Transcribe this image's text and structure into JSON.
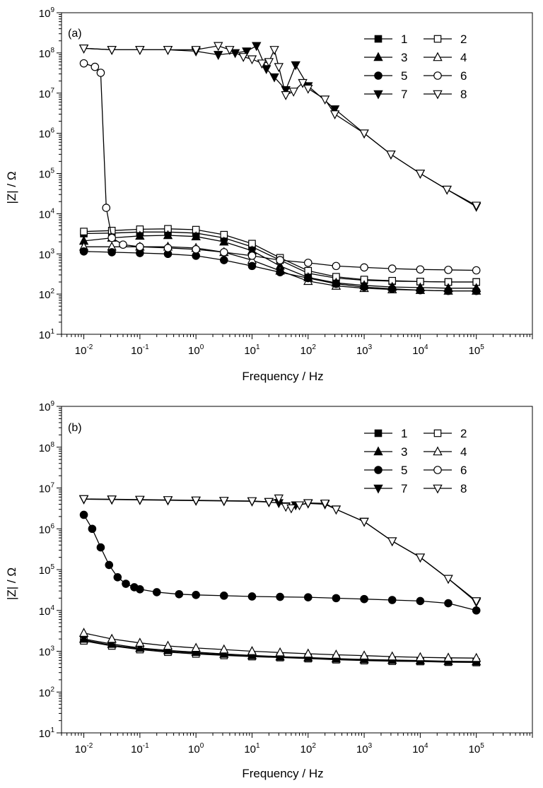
{
  "chart_data": [
    {
      "type": "scatter",
      "panel_label": "(a)",
      "xlabel": "Frequency / Hz",
      "ylabel": "|Z| / Ω",
      "xscale": "log",
      "yscale": "log",
      "xlim": [
        0.004,
        1000000
      ],
      "ylim": [
        10,
        1000000000
      ],
      "x_ticks": [
        {
          "base": "10",
          "exp": "-2",
          "v": 0.01
        },
        {
          "base": "10",
          "exp": "-1",
          "v": 0.1
        },
        {
          "base": "10",
          "exp": "0",
          "v": 1
        },
        {
          "base": "10",
          "exp": "1",
          "v": 10
        },
        {
          "base": "10",
          "exp": "2",
          "v": 100
        },
        {
          "base": "10",
          "exp": "3",
          "v": 1000
        },
        {
          "base": "10",
          "exp": "4",
          "v": 10000
        },
        {
          "base": "10",
          "exp": "5",
          "v": 100000
        }
      ],
      "y_ticks": [
        {
          "base": "10",
          "exp": "1",
          "v": 10
        },
        {
          "base": "10",
          "exp": "2",
          "v": 100
        },
        {
          "base": "10",
          "exp": "3",
          "v": 1000
        },
        {
          "base": "10",
          "exp": "4",
          "v": 10000
        },
        {
          "base": "10",
          "exp": "5",
          "v": 100000
        },
        {
          "base": "10",
          "exp": "6",
          "v": 1000000
        },
        {
          "base": "10",
          "exp": "7",
          "v": 10000000
        },
        {
          "base": "10",
          "exp": "8",
          "v": 100000000
        },
        {
          "base": "10",
          "exp": "9",
          "v": 1000000000
        }
      ],
      "legend_position": "top-right",
      "series": [
        {
          "name": "1",
          "marker": "square",
          "filled": true,
          "x": [
            0.01,
            0.0316,
            0.1,
            0.316,
            1,
            3.16,
            10,
            31.6,
            100,
            316,
            1000,
            3160,
            10000,
            31600,
            100000
          ],
          "y": [
            3200,
            3300,
            3500,
            3500,
            3300,
            2500,
            1500,
            700,
            330,
            250,
            220,
            210,
            205,
            200,
            200
          ]
        },
        {
          "name": "2",
          "marker": "square",
          "filled": false,
          "x": [
            0.01,
            0.0316,
            0.1,
            0.316,
            1,
            3.16,
            10,
            31.6,
            100,
            316,
            1000,
            3160,
            10000,
            31600,
            100000
          ],
          "y": [
            3600,
            3800,
            4100,
            4200,
            4000,
            3000,
            1800,
            800,
            380,
            270,
            230,
            215,
            205,
            200,
            200
          ]
        },
        {
          "name": "3",
          "marker": "triangle-up",
          "filled": true,
          "x": [
            0.01,
            0.0316,
            0.1,
            0.316,
            1,
            3.16,
            10,
            31.6,
            100,
            316,
            1000,
            3160,
            10000,
            31600,
            100000
          ],
          "y": [
            2100,
            2500,
            2800,
            2900,
            2700,
            2000,
            1200,
            500,
            260,
            190,
            165,
            150,
            145,
            140,
            140
          ]
        },
        {
          "name": "4",
          "marker": "triangle-up",
          "filled": false,
          "x": [
            0.01,
            0.0316,
            0.1,
            0.316,
            1,
            3.16,
            10,
            31.6,
            100,
            316,
            1000,
            3160,
            10000,
            31600,
            100000
          ],
          "y": [
            1500,
            1500,
            1500,
            1500,
            1400,
            1100,
            700,
            380,
            210,
            160,
            140,
            130,
            125,
            120,
            120
          ]
        },
        {
          "name": "5",
          "marker": "circle",
          "filled": true,
          "x": [
            0.01,
            0.0316,
            0.1,
            0.316,
            1,
            3.16,
            10,
            31.6,
            100,
            316,
            1000,
            3160,
            10000,
            31600,
            100000
          ],
          "y": [
            1150,
            1100,
            1050,
            1000,
            900,
            700,
            500,
            350,
            250,
            180,
            150,
            135,
            125,
            120,
            120
          ]
        },
        {
          "name": "6",
          "marker": "circle",
          "filled": false,
          "x": [
            0.01,
            0.0158,
            0.02,
            0.0251,
            0.0316,
            0.05,
            0.1,
            0.316,
            1,
            3.16,
            10,
            31.6,
            100,
            316,
            1000,
            3160,
            10000,
            31600,
            100000
          ],
          "y": [
            55000000,
            45000000,
            32000000,
            14000,
            2500,
            1700,
            1500,
            1400,
            1300,
            1100,
            900,
            700,
            600,
            500,
            460,
            430,
            410,
            400,
            390
          ]
        },
        {
          "name": "7",
          "marker": "triangle-down",
          "filled": true,
          "x": [
            0.01,
            0.0316,
            0.1,
            0.316,
            1,
            2.5,
            5,
            8,
            12,
            18,
            25,
            40,
            60,
            100,
            300,
            1000,
            3000,
            10000,
            30000,
            100000
          ],
          "y": [
            130000000,
            120000000,
            120000000,
            120000000,
            110000000,
            90000000,
            100000000,
            110000000,
            150000000,
            40000000,
            25000000,
            12000000,
            50000000,
            15000000,
            4000000,
            1000000,
            300000,
            100000,
            40000,
            15000
          ]
        },
        {
          "name": "8",
          "marker": "triangle-down",
          "filled": false,
          "x": [
            0.01,
            0.0316,
            0.1,
            0.316,
            1,
            2.5,
            4,
            7,
            10,
            15,
            20,
            25,
            30,
            40,
            55,
            80,
            100,
            200,
            300,
            1000,
            3000,
            10000,
            30000,
            100000
          ],
          "y": [
            130000000,
            120000000,
            120000000,
            120000000,
            120000000,
            150000000,
            120000000,
            80000000,
            70000000,
            55000000,
            60000000,
            120000000,
            45000000,
            9000000,
            11000000,
            18000000,
            13000000,
            7000000,
            3000000,
            1000000,
            300000,
            100000,
            40000,
            16000
          ]
        }
      ]
    },
    {
      "type": "scatter",
      "panel_label": "(b)",
      "xlabel": "Frequency / Hz",
      "ylabel": "|Z| / Ω",
      "xscale": "log",
      "yscale": "log",
      "xlim": [
        0.004,
        1000000
      ],
      "ylim": [
        10,
        1000000000
      ],
      "x_ticks": [
        {
          "base": "10",
          "exp": "-2",
          "v": 0.01
        },
        {
          "base": "10",
          "exp": "-1",
          "v": 0.1
        },
        {
          "base": "10",
          "exp": "0",
          "v": 1
        },
        {
          "base": "10",
          "exp": "1",
          "v": 10
        },
        {
          "base": "10",
          "exp": "2",
          "v": 100
        },
        {
          "base": "10",
          "exp": "3",
          "v": 1000
        },
        {
          "base": "10",
          "exp": "4",
          "v": 10000
        },
        {
          "base": "10",
          "exp": "5",
          "v": 100000
        }
      ],
      "y_ticks": [
        {
          "base": "10",
          "exp": "1",
          "v": 10
        },
        {
          "base": "10",
          "exp": "2",
          "v": 100
        },
        {
          "base": "10",
          "exp": "3",
          "v": 1000
        },
        {
          "base": "10",
          "exp": "4",
          "v": 10000
        },
        {
          "base": "10",
          "exp": "5",
          "v": 100000
        },
        {
          "base": "10",
          "exp": "6",
          "v": 1000000
        },
        {
          "base": "10",
          "exp": "7",
          "v": 10000000
        },
        {
          "base": "10",
          "exp": "8",
          "v": 100000000
        },
        {
          "base": "10",
          "exp": "9",
          "v": 1000000000
        }
      ],
      "legend_position": "top-right",
      "series": [
        {
          "name": "1",
          "marker": "square",
          "filled": true,
          "x": [
            0.01,
            0.0316,
            0.1,
            0.316,
            1,
            3.16,
            10,
            31.6,
            100,
            316,
            1000,
            3160,
            10000,
            31600,
            100000
          ],
          "y": [
            1900,
            1400,
            1150,
            1000,
            900,
            820,
            760,
            720,
            680,
            640,
            610,
            590,
            570,
            560,
            540
          ]
        },
        {
          "name": "2",
          "marker": "square",
          "filled": false,
          "x": [
            0.01,
            0.0316,
            0.1,
            0.316,
            1,
            3.16,
            10,
            31.6,
            100,
            316,
            1000,
            3160,
            10000,
            31600,
            100000
          ],
          "y": [
            1800,
            1350,
            1100,
            950,
            860,
            790,
            740,
            700,
            660,
            620,
            590,
            570,
            560,
            540,
            530
          ]
        },
        {
          "name": "3",
          "marker": "triangle-up",
          "filled": true,
          "x": [
            0.01,
            0.0316,
            0.1,
            0.316,
            1,
            3.16,
            10,
            31.6,
            100,
            316,
            1000,
            3160,
            10000,
            31600,
            100000
          ],
          "y": [
            2000,
            1500,
            1200,
            1050,
            950,
            860,
            790,
            740,
            700,
            660,
            630,
            610,
            590,
            570,
            560
          ]
        },
        {
          "name": "4",
          "marker": "triangle-up",
          "filled": false,
          "x": [
            0.01,
            0.0316,
            0.1,
            0.316,
            1,
            3.16,
            10,
            31.6,
            100,
            316,
            1000,
            3160,
            10000,
            31600,
            100000
          ],
          "y": [
            2800,
            2000,
            1600,
            1350,
            1200,
            1100,
            1000,
            930,
            870,
            820,
            780,
            740,
            710,
            690,
            680
          ]
        },
        {
          "name": "5",
          "marker": "circle",
          "filled": true,
          "x": [
            0.01,
            0.0141,
            0.02,
            0.0282,
            0.04,
            0.0562,
            0.0794,
            0.1,
            0.2,
            0.5,
            1,
            3.16,
            10,
            31.6,
            100,
            316,
            1000,
            3160,
            10000,
            31600,
            100000
          ],
          "y": [
            2200000,
            1000000,
            350000,
            130000,
            65000,
            45000,
            37000,
            33000,
            28000,
            25000,
            24000,
            23000,
            22000,
            21500,
            21000,
            20000,
            19000,
            18000,
            17000,
            15000,
            10000
          ]
        },
        {
          "name": "6",
          "marker": "circle",
          "filled": false,
          "x": [],
          "y": []
        },
        {
          "name": "7",
          "marker": "triangle-down",
          "filled": true,
          "x": [
            0.01,
            0.0316,
            0.1,
            0.316,
            1,
            3.16,
            10,
            20,
            30,
            40,
            60,
            100,
            200,
            316,
            1000,
            3160,
            10000,
            31600,
            100000
          ],
          "y": [
            5300000,
            5200000,
            5100000,
            5000000,
            4900000,
            4800000,
            4700000,
            4500000,
            4300000,
            3600000,
            3800000,
            4200000,
            4000000,
            3000000,
            1500000,
            500000,
            200000,
            60000,
            16000
          ]
        },
        {
          "name": "8",
          "marker": "triangle-down",
          "filled": false,
          "x": [
            0.01,
            0.0316,
            0.1,
            0.316,
            1,
            3.16,
            10,
            20,
            30,
            40,
            50,
            70,
            100,
            200,
            316,
            1000,
            3160,
            10000,
            31600,
            100000
          ],
          "y": [
            5400000,
            5300000,
            5200000,
            5100000,
            5000000,
            4900000,
            4800000,
            4600000,
            5600000,
            3500000,
            3200000,
            3800000,
            4300000,
            4200000,
            3000000,
            1500000,
            500000,
            200000,
            60000,
            17000
          ]
        }
      ]
    }
  ]
}
